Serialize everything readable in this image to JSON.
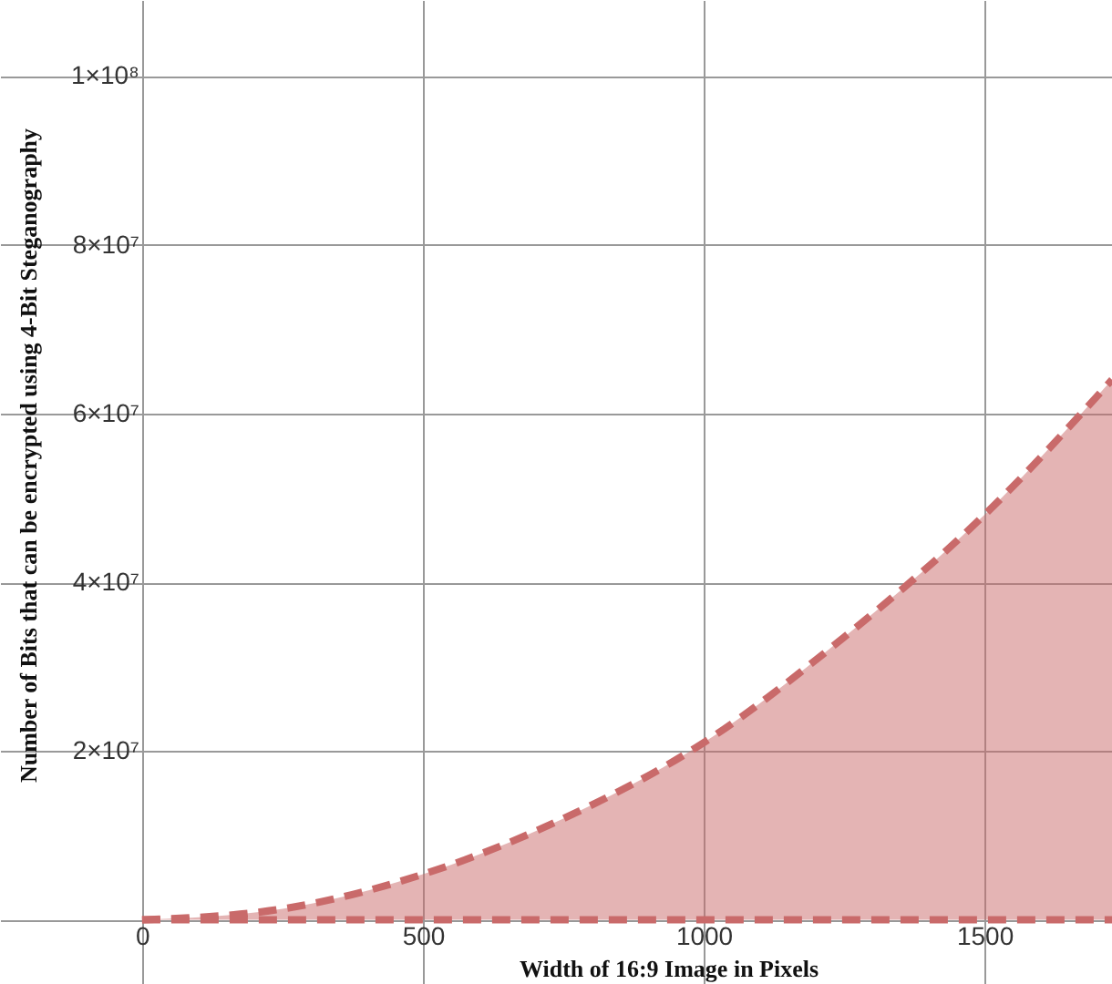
{
  "chart_data": {
    "type": "area",
    "xlabel": "Width of 16:9 Image in Pixels",
    "ylabel": "Number of Bits that can be encrypted using 4-Bit Steganography",
    "series": [
      {
        "color": "#c96a6a",
        "x": [
          0,
          250,
          500,
          750,
          1000,
          1250,
          1500,
          1727
        ],
        "values": [
          0,
          1300000,
          5400000,
          12000000,
          21000000,
          33500000,
          48000000,
          64000000
        ]
      },
      {
        "type": "line",
        "color": "#c96a6a",
        "x": [
          0,
          1727
        ],
        "values": [
          0,
          0
        ]
      }
    ],
    "line_style": "dashed",
    "grid": true,
    "xlim": [
      -253,
      1727
    ],
    "ylim": [
      -7600000,
      109000000
    ],
    "xticks": [
      0,
      500,
      1000,
      1500
    ],
    "yticks": [
      {
        "value": 0,
        "label": null
      },
      {
        "value": 20000000,
        "label": "2×10⁷"
      },
      {
        "value": 40000000,
        "label": "4×10⁷"
      },
      {
        "value": 60000000,
        "label": "6×10⁷"
      },
      {
        "value": 80000000,
        "label": "8×10⁷"
      },
      {
        "value": 100000000,
        "label": "1×10⁸"
      }
    ]
  }
}
